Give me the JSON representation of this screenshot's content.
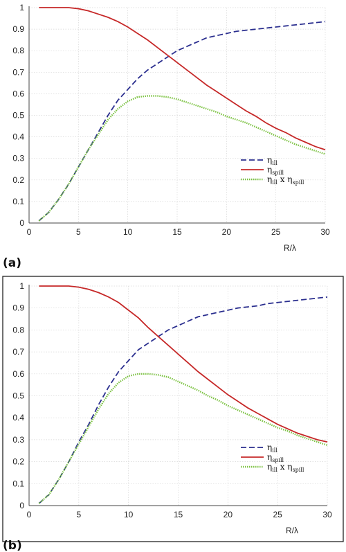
{
  "chart_data": [
    {
      "type": "line",
      "panel_label": "(a)",
      "framed": false,
      "xlabel": "R/λ",
      "ylabel": "",
      "xlim": [
        0,
        30
      ],
      "ylim": [
        0,
        1
      ],
      "x_ticks": [
        "0",
        "5",
        "10",
        "15",
        "20",
        "25",
        "30"
      ],
      "y_ticks": [
        "0",
        "0.1",
        "0.2",
        "0.3",
        "0.4",
        "0.5",
        "0.6",
        "0.7",
        "0.8",
        "0.9",
        "1"
      ],
      "grid": true,
      "legend_position": "right",
      "x": [
        1,
        2,
        3,
        4,
        5,
        6,
        7,
        8,
        9,
        10,
        11,
        12,
        13,
        14,
        15,
        16,
        17,
        18,
        19,
        20,
        21,
        22,
        23,
        24,
        25,
        26,
        27,
        28,
        29,
        30
      ],
      "series": [
        {
          "name": "η_ill",
          "legend_main": "η",
          "legend_sub": "ill",
          "style": "dashed",
          "color": "#2b2f8f",
          "values": [
            0.01,
            0.05,
            0.11,
            0.18,
            0.26,
            0.34,
            0.42,
            0.5,
            0.57,
            0.62,
            0.67,
            0.71,
            0.74,
            0.77,
            0.8,
            0.82,
            0.84,
            0.86,
            0.87,
            0.88,
            0.89,
            0.895,
            0.9,
            0.905,
            0.91,
            0.915,
            0.92,
            0.925,
            0.93,
            0.935
          ]
        },
        {
          "name": "η_spill",
          "legend_main": "η",
          "legend_sub": "spill",
          "style": "solid",
          "color": "#c62828",
          "values": [
            1.0,
            1.0,
            1.0,
            1.0,
            0.995,
            0.985,
            0.97,
            0.955,
            0.935,
            0.91,
            0.88,
            0.85,
            0.815,
            0.78,
            0.745,
            0.71,
            0.675,
            0.64,
            0.61,
            0.58,
            0.55,
            0.52,
            0.495,
            0.465,
            0.44,
            0.42,
            0.395,
            0.375,
            0.355,
            0.34
          ]
        },
        {
          "name": "η_ill x η_spill",
          "legend_main": "η",
          "legend_sub": "ill",
          "legend_mid": " x η",
          "legend_sub2": "spill",
          "style": "dotted",
          "color": "#7cc242",
          "values": [
            0.01,
            0.05,
            0.11,
            0.18,
            0.26,
            0.34,
            0.41,
            0.48,
            0.53,
            0.565,
            0.585,
            0.59,
            0.59,
            0.585,
            0.575,
            0.56,
            0.545,
            0.53,
            0.515,
            0.495,
            0.48,
            0.465,
            0.445,
            0.425,
            0.405,
            0.385,
            0.365,
            0.35,
            0.335,
            0.32
          ]
        }
      ]
    },
    {
      "type": "line",
      "panel_label": "(b)",
      "framed": true,
      "xlabel": "R/λ",
      "ylabel": "",
      "xlim": [
        0,
        30
      ],
      "ylim": [
        0,
        1
      ],
      "x_ticks": [
        "0",
        "5",
        "10",
        "15",
        "20",
        "25",
        "30"
      ],
      "y_ticks": [
        "0",
        "0.1",
        "0.2",
        "0.3",
        "0.4",
        "0.5",
        "0.6",
        "0.7",
        "0.8",
        "0.9",
        "1"
      ],
      "grid": true,
      "legend_position": "right",
      "x": [
        1,
        2,
        3,
        4,
        5,
        6,
        7,
        8,
        9,
        10,
        11,
        12,
        13,
        14,
        15,
        16,
        17,
        18,
        19,
        20,
        21,
        22,
        23,
        24,
        25,
        26,
        27,
        28,
        29,
        30
      ],
      "series": [
        {
          "name": "η_ill",
          "legend_main": "η",
          "legend_sub": "ill",
          "style": "dashed",
          "color": "#2b2f8f",
          "values": [
            0.01,
            0.05,
            0.12,
            0.2,
            0.29,
            0.37,
            0.46,
            0.54,
            0.61,
            0.66,
            0.71,
            0.74,
            0.77,
            0.8,
            0.82,
            0.84,
            0.86,
            0.87,
            0.88,
            0.89,
            0.9,
            0.905,
            0.91,
            0.92,
            0.925,
            0.93,
            0.935,
            0.94,
            0.945,
            0.95
          ]
        },
        {
          "name": "η_spill",
          "legend_main": "η",
          "legend_sub": "spill",
          "style": "solid",
          "color": "#c62828",
          "values": [
            1.0,
            1.0,
            1.0,
            1.0,
            0.995,
            0.985,
            0.97,
            0.95,
            0.925,
            0.89,
            0.855,
            0.81,
            0.77,
            0.73,
            0.69,
            0.65,
            0.61,
            0.575,
            0.54,
            0.505,
            0.475,
            0.445,
            0.42,
            0.395,
            0.37,
            0.35,
            0.33,
            0.315,
            0.3,
            0.29
          ]
        },
        {
          "name": "η_ill x η_spill",
          "legend_main": "η",
          "legend_sub": "ill",
          "legend_mid": " x η",
          "legend_sub2": "spill",
          "style": "dotted",
          "color": "#7cc242",
          "values": [
            0.01,
            0.05,
            0.12,
            0.2,
            0.28,
            0.36,
            0.44,
            0.51,
            0.56,
            0.59,
            0.6,
            0.6,
            0.595,
            0.585,
            0.565,
            0.545,
            0.525,
            0.5,
            0.48,
            0.455,
            0.435,
            0.415,
            0.395,
            0.375,
            0.355,
            0.34,
            0.32,
            0.305,
            0.29,
            0.275
          ]
        }
      ]
    }
  ]
}
